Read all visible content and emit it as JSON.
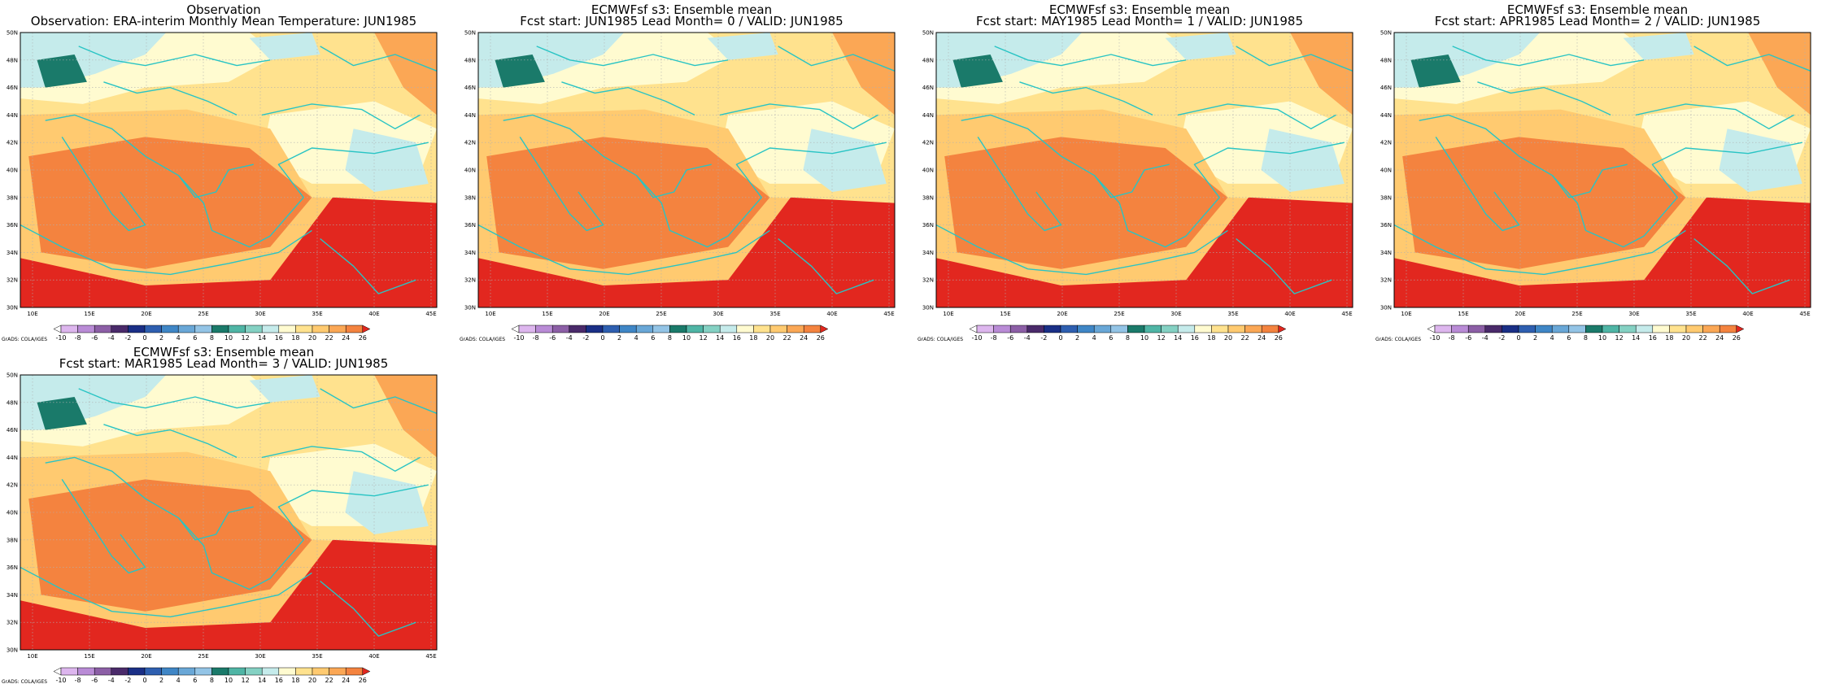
{
  "map": {
    "lat_labels": [
      "30N",
      "32N",
      "34N",
      "36N",
      "38N",
      "40N",
      "42N",
      "44N",
      "46N",
      "48N",
      "50N"
    ],
    "lon_labels": [
      "10E",
      "15E",
      "20E",
      "25E",
      "30E",
      "35E",
      "40E",
      "45E"
    ],
    "colorbar_labels": [
      "-10",
      "-8",
      "-6",
      "-4",
      "-2",
      "0",
      "2",
      "4",
      "6",
      "8",
      "10",
      "12",
      "14",
      "16",
      "18",
      "20",
      "22",
      "24",
      "26"
    ],
    "colorbar_colors": [
      "#ffffff",
      "#ddb6ee",
      "#b98bd6",
      "#8c5fa6",
      "#4a2a6a",
      "#1a2f86",
      "#2e5fb0",
      "#3f86c6",
      "#69a7d7",
      "#93c4e6",
      "#1a7a6a",
      "#4fb5a5",
      "#84d1c3",
      "#c5ebeb",
      "#fffbd0",
      "#ffe28e",
      "#ffca70",
      "#fba755",
      "#f4833f",
      "#e2271f"
    ],
    "grads_credit": "GrADS: COLA/IGES",
    "coastline_color": "#29c4c4"
  },
  "panels": [
    {
      "title1": "Observation",
      "title2": "Observation: ERA-interim Monthly Mean Temperature: JUN1985"
    },
    {
      "title1": "ECMWFsf s3: Ensemble mean",
      "title2": "Fcst start: JUN1985  Lead Month= 0 / VALID: JUN1985"
    },
    {
      "title1": "ECMWFsf s3: Ensemble mean",
      "title2": "Fcst start: MAY1985  Lead Month= 1 / VALID: JUN1985"
    },
    {
      "title1": "ECMWFsf s3: Ensemble mean",
      "title2": "Fcst start: APR1985  Lead Month= 2 / VALID: JUN1985"
    },
    {
      "title1": "ECMWFsf s3: Ensemble mean",
      "title2": "Fcst start: MAR1985  Lead Month= 3 / VALID: JUN1985"
    }
  ]
}
